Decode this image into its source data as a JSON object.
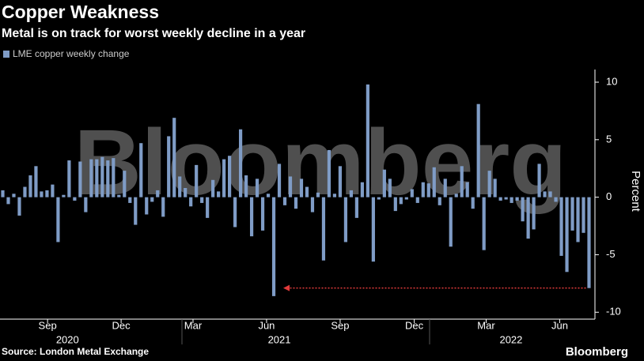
{
  "chart_data": {
    "type": "bar",
    "title": "Copper Weakness",
    "subtitle": "Metal is on track for worst weekly decline in a year",
    "legend": "LME copper weekly change",
    "y_label": "Percent",
    "watermark": "Bloomberg",
    "source": "Source: London Metal Exchange",
    "brand": "Bloomberg",
    "color": "#7f9cc6",
    "values": [
      0.6,
      -0.6,
      0.3,
      -1.6,
      0.9,
      1.9,
      2.7,
      0.5,
      0.6,
      1.1,
      -3.9,
      0.2,
      3.2,
      -0.3,
      3.1,
      -1.3,
      3.3,
      3.3,
      3.5,
      3.2,
      3.4,
      0.2,
      2.3,
      -0.5,
      -2.4,
      4.7,
      -1.5,
      -0.4,
      0.6,
      -1.7,
      5.3,
      6.9,
      1.8,
      0.8,
      -0.8,
      2.8,
      -0.5,
      -1.8,
      1.5,
      0.5,
      3.3,
      3.6,
      -2.6,
      5.9,
      1.9,
      -3.4,
      1.6,
      -2.9,
      0.3,
      -8.6,
      2.9,
      -0.7,
      1.8,
      -1.0,
      1.6,
      0.9,
      -1.3,
      0.4,
      -5.5,
      4.1,
      0.3,
      2.7,
      -3.9,
      0.6,
      -1.8,
      1.3,
      9.8,
      -5.6,
      -0.2,
      2.4,
      1.6,
      -1.2,
      -0.6,
      -0.2,
      0.7,
      -0.5,
      1.3,
      1.2,
      2.6,
      -0.7,
      1.6,
      -4.3,
      0.3,
      2.7,
      1.3,
      -1.0,
      8.1,
      -4.6,
      2.3,
      1.6,
      -0.3,
      -0.2,
      -0.5,
      -0.3,
      -2.1,
      -3.6,
      -2.8,
      2.9,
      0.5,
      0.5,
      -0.4,
      -5.1,
      -6.5,
      -2.9,
      -3.9,
      -3.1,
      -7.9
    ],
    "ylim": [
      -10.6,
      11.1
    ],
    "yticks": [
      10,
      5,
      0,
      -5,
      -10
    ],
    "xticks": [
      {
        "value": 8.1,
        "label": "Sep"
      },
      {
        "value": 21.4,
        "label": "Dec"
      },
      {
        "value": 34.4,
        "label": "Mar"
      },
      {
        "value": 47.7,
        "label": "Jun"
      },
      {
        "value": 61,
        "label": "Sep"
      },
      {
        "value": 74.4,
        "label": "Dec"
      },
      {
        "value": 87.4,
        "label": "Mar"
      },
      {
        "value": 100.7,
        "label": "Jun"
      }
    ],
    "year_labels": [
      {
        "value": 11.7,
        "label": "2020"
      },
      {
        "value": 50,
        "label": "2021"
      },
      {
        "value": 91.9,
        "label": "2022"
      }
    ]
  }
}
